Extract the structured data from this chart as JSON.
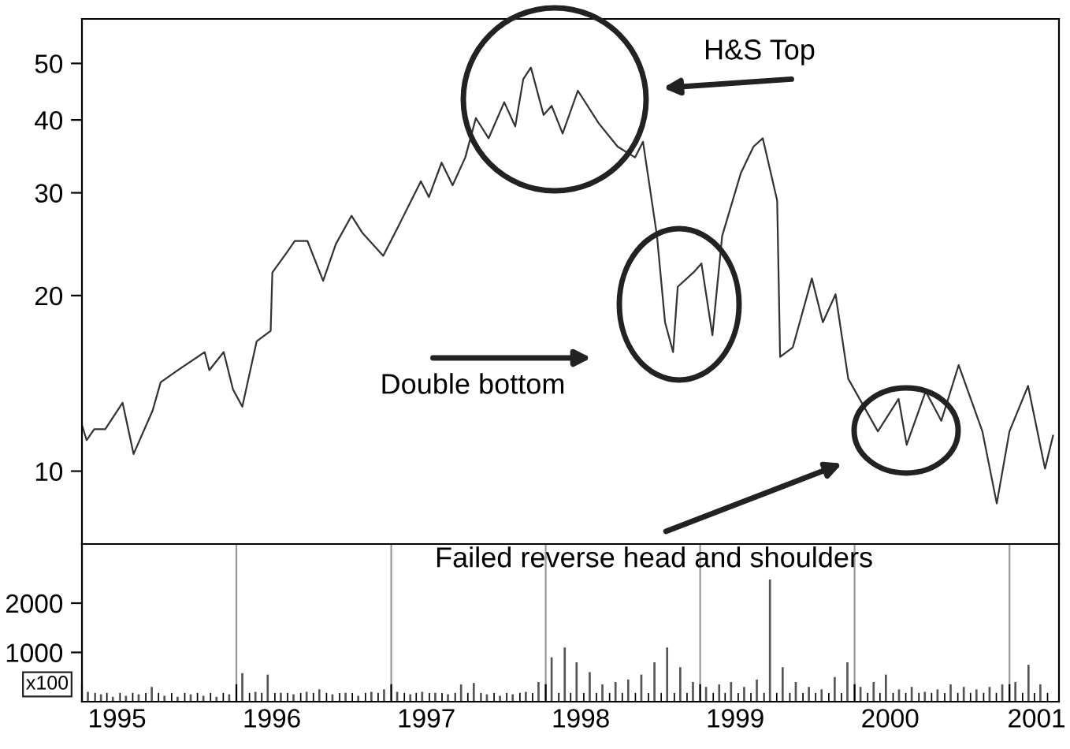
{
  "chart_data": [
    {
      "type": "line",
      "log": true,
      "tick_labels": "y",
      "xlim": [
        "1995-01-01",
        "2001-04-28"
      ],
      "ylim": [
        7.5,
        59.6
      ],
      "yticks": [
        10,
        20,
        30,
        40,
        50
      ],
      "x": [
        "1995-01-01",
        "1995-01-12",
        "1995-01-30",
        "1995-02-25",
        "1995-04-07",
        "1995-05-03",
        "1995-06-17",
        "1995-07-06",
        "1995-08-16",
        "1995-10-18",
        "1995-10-29",
        "1995-12-02",
        "1995-12-24",
        "1996-01-15",
        "1996-02-18",
        "1996-03-22",
        "1996-03-26",
        "1996-04-29",
        "1996-05-18",
        "1996-06-17",
        "1996-07-24",
        "1996-08-23",
        "1996-09-29",
        "1996-10-25",
        "1996-12-13",
        "1997-01-19",
        "1997-03-12",
        "1997-03-31",
        "1997-04-30",
        "1997-05-26",
        "1997-06-25",
        "1997-07-20",
        "1997-08-19",
        "1997-09-25",
        "1997-10-21",
        "1997-11-09",
        "1997-11-27",
        "1997-12-27",
        "1998-01-15",
        "1998-02-10",
        "1998-03-18",
        "1998-05-06",
        "1998-06-20",
        "1998-07-31",
        "1998-08-19",
        "1998-09-21",
        "1998-10-10",
        "1998-10-29",
        "1998-11-09",
        "1998-12-16",
        "1999-01-04",
        "1999-01-30",
        "1999-02-22",
        "1999-04-07",
        "1999-05-07",
        "1999-05-29",
        "1999-07-02",
        "1999-07-09",
        "1999-08-08",
        "1999-09-22",
        "1999-10-18",
        "1999-11-17",
        "1999-12-17",
        "2000-02-25",
        "2000-04-14",
        "2000-05-03",
        "2000-06-17",
        "2000-07-24",
        "2000-09-03",
        "2000-10-29",
        "2000-12-02",
        "2001-01-01",
        "2001-02-14",
        "2001-03-26",
        "2001-04-14"
      ],
      "series": [
        {
          "color": "#333333",
          "values": [
            12.0,
            11.3,
            11.8,
            11.8,
            13.1,
            10.7,
            12.7,
            14.2,
            14.9,
            16.0,
            14.9,
            16.0,
            13.8,
            12.9,
            16.7,
            17.4,
            21.9,
            23.7,
            24.8,
            24.8,
            21.2,
            24.5,
            27.4,
            25.6,
            23.4,
            26.4,
            31.4,
            29.5,
            33.8,
            30.9,
            34.5,
            40.3,
            37.2,
            42.9,
            39.0,
            47.0,
            49.2,
            40.8,
            42.3,
            37.9,
            44.9,
            39.5,
            36.0,
            34.5,
            36.7,
            25.3,
            18.0,
            16.0,
            20.7,
            21.9,
            22.7,
            17.1,
            25.3,
            32.4,
            36.0,
            37.2,
            29.1,
            15.7,
            16.3,
            21.4,
            18.0,
            20.1,
            14.4,
            11.7,
            13.3,
            11.1,
            13.7,
            12.2,
            15.2,
            11.7,
            8.8,
            11.7,
            14.0,
            10.1,
            11.5
          ]
        }
      ],
      "annotations": [
        "H&S Top",
        "Double bottom",
        "Failed reverse head and shoulders"
      ]
    },
    {
      "type": "bar",
      "grid": "x",
      "xlim": [
        "1995-01-01",
        "2001-04-28"
      ],
      "ylim": [
        0,
        3200
      ],
      "yticks": [
        1000,
        2000
      ],
      "xticks": [
        {
          "value": "1995-01-01",
          "label": null
        },
        {
          "value": "1995-03-25",
          "label": "1995"
        },
        {
          "value": "1996-01-01",
          "label": null
        },
        {
          "value": "1996-03-25",
          "label": "1996"
        },
        {
          "value": "1997-01-01",
          "label": null
        },
        {
          "value": "1997-03-25",
          "label": "1997"
        },
        {
          "value": "1998-01-01",
          "label": null
        },
        {
          "value": "1998-03-25",
          "label": "1998"
        },
        {
          "value": "1999-01-01",
          "label": null
        },
        {
          "value": "1999-03-25",
          "label": "1999"
        },
        {
          "value": "2000-01-01",
          "label": null
        },
        {
          "value": "2000-03-25",
          "label": "2000"
        },
        {
          "value": "2001-01-01",
          "label": null
        },
        {
          "value": "2001-03-06",
          "label": "2001"
        }
      ],
      "x": [
        "1995-01-15",
        "1995-02-15",
        "1995-03-15",
        "1995-04-15",
        "1995-05-15",
        "1995-06-15",
        "1995-07-15",
        "1995-08-15",
        "1995-09-15",
        "1995-10-15",
        "1995-11-15",
        "1995-12-15",
        "1996-01-15",
        "1996-02-15",
        "1996-03-15",
        "1996-04-15",
        "1996-05-15",
        "1996-06-15",
        "1996-07-15",
        "1996-08-15",
        "1996-09-15",
        "1996-10-15",
        "1996-11-15",
        "1996-12-15",
        "1997-01-15",
        "1997-02-15",
        "1997-03-15",
        "1997-04-15",
        "1997-05-15",
        "1997-06-15",
        "1997-07-15",
        "1997-08-15",
        "1997-09-15",
        "1997-10-15",
        "1997-11-15",
        "1997-12-15",
        "1998-01-15",
        "1998-02-15",
        "1998-03-15",
        "1998-04-15",
        "1998-05-15",
        "1998-06-15",
        "1998-07-15",
        "1998-08-15",
        "1998-09-15",
        "1998-10-15",
        "1998-11-15",
        "1998-12-15",
        "1999-01-15",
        "1999-02-15",
        "1999-03-15",
        "1999-04-15",
        "1999-05-15",
        "1999-06-15",
        "1999-07-15",
        "1999-08-15",
        "1999-09-15",
        "1999-10-15",
        "1999-11-15",
        "1999-12-15",
        "2000-01-15",
        "2000-02-15",
        "2000-03-15",
        "2000-04-15",
        "2000-05-15",
        "2000-06-15",
        "2000-07-15",
        "2000-08-15",
        "2000-09-15",
        "2000-10-15",
        "2000-11-15",
        "2000-12-15",
        "2001-01-15",
        "2001-02-15",
        "2001-03-15"
      ],
      "series": [
        {
          "color": "#555555",
          "values": [
            200,
            150,
            100,
            120,
            150,
            300,
            120,
            100,
            150,
            120,
            100,
            150,
            580,
            200,
            550,
            180,
            150,
            200,
            250,
            150,
            180,
            120,
            200,
            250,
            200,
            150,
            200,
            180,
            150,
            350,
            380,
            150,
            120,
            150,
            200,
            400,
            900,
            1100,
            800,
            600,
            350,
            400,
            450,
            550,
            800,
            1100,
            700,
            400,
            300,
            350,
            400,
            300,
            450,
            2480,
            700,
            400,
            300,
            250,
            500,
            800,
            300,
            400,
            550,
            250,
            300,
            200,
            250,
            350,
            300,
            250,
            300,
            350,
            400,
            750,
            350
          ]
        }
      ],
      "annotations": [
        "x100"
      ]
    }
  ]
}
